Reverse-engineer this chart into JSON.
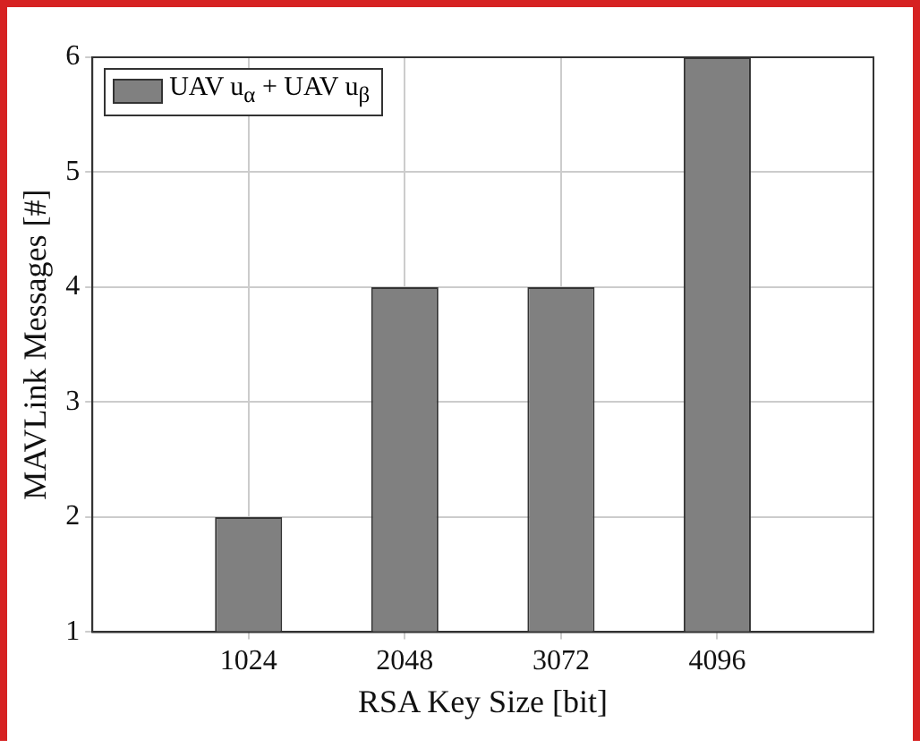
{
  "chart_data": {
    "type": "bar",
    "categories": [
      "1024",
      "2048",
      "3072",
      "4096"
    ],
    "series": [
      {
        "name": "UAV u$_{α}$ + UAV u$_{β}$",
        "color": "#808080",
        "values": [
          2,
          4,
          4,
          6
        ]
      }
    ],
    "xlabel": "RSA Key Size [bit]",
    "ylabel": "MAVLink Messages [#]",
    "ylim": [
      1,
      6
    ],
    "yticks": [
      1,
      2,
      3,
      4,
      5,
      6
    ],
    "grid": true,
    "legend": "top left"
  }
}
